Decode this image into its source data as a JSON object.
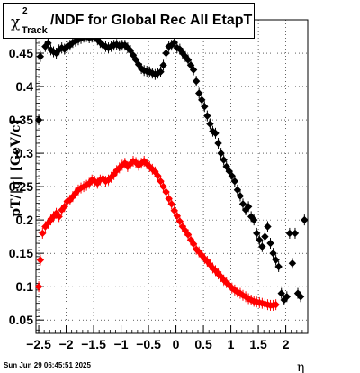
{
  "chart_data": {
    "type": "scatter",
    "title": {
      "symbol": "χ",
      "superscript": "2",
      "subscript": "Track",
      "text": "/NDF for Global Rec All EtapT"
    },
    "xlabel": "η",
    "ylabel": "pT/|q| [GeV/c]",
    "xlim": [
      -2.55,
      2.4
    ],
    "ylim": [
      0.03,
      0.5
    ],
    "x_ticks": [
      "−2.5",
      "−2",
      "−1.5",
      "−1",
      "−0.5",
      "0",
      "0.5",
      "1",
      "1.5",
      "2"
    ],
    "y_ticks": [
      "0.05",
      "0.1",
      "0.15",
      "0.2",
      "0.25",
      "0.3",
      "0.35",
      "0.4",
      "0.45"
    ],
    "grid": true,
    "series": [
      {
        "color": "#000000",
        "marker": "diamond",
        "x": [
          -2.5,
          -2.47,
          -2.43,
          -2.38,
          -2.33,
          -2.28,
          -2.23,
          -2.18,
          -2.13,
          -2.08,
          -2.03,
          -1.98,
          -1.93,
          -1.88,
          -1.83,
          -1.78,
          -1.73,
          -1.68,
          -1.63,
          -1.58,
          -1.53,
          -1.48,
          -1.43,
          -1.38,
          -1.33,
          -1.28,
          -1.23,
          -1.18,
          -1.13,
          -1.08,
          -1.03,
          -0.98,
          -0.93,
          -0.88,
          -0.83,
          -0.78,
          -0.73,
          -0.68,
          -0.63,
          -0.58,
          -0.53,
          -0.48,
          -0.43,
          -0.38,
          -0.33,
          -0.28,
          -0.23,
          -0.18,
          -0.13,
          -0.08,
          -0.03,
          0.02,
          0.07,
          0.12,
          0.17,
          0.22,
          0.27,
          0.32,
          0.37,
          0.42,
          0.47,
          0.52,
          0.57,
          0.62,
          0.67,
          0.72,
          0.77,
          0.82,
          0.87,
          0.92,
          0.97,
          1.02,
          1.07,
          1.12,
          1.17,
          1.22,
          1.27,
          1.32,
          1.37,
          1.42,
          1.47,
          1.52,
          1.57,
          1.62,
          1.67,
          1.72,
          1.77,
          1.82,
          1.87,
          1.92,
          1.97,
          2.02,
          2.07,
          2.12,
          2.17,
          2.22,
          2.27,
          2.34
        ],
        "y": [
          0.35,
          0.445,
          0.48,
          0.46,
          0.465,
          0.455,
          0.452,
          0.45,
          0.455,
          0.458,
          0.456,
          0.46,
          0.462,
          0.466,
          0.468,
          0.47,
          0.472,
          0.474,
          0.475,
          0.473,
          0.474,
          0.475,
          0.47,
          0.466,
          0.462,
          0.46,
          0.458,
          0.46,
          0.462,
          0.463,
          0.461,
          0.462,
          0.462,
          0.458,
          0.454,
          0.447,
          0.44,
          0.433,
          0.427,
          0.424,
          0.423,
          0.422,
          0.42,
          0.418,
          0.42,
          0.422,
          0.432,
          0.45,
          0.46,
          0.462,
          0.466,
          0.458,
          0.456,
          0.45,
          0.445,
          0.44,
          0.432,
          0.425,
          0.408,
          0.39,
          0.38,
          0.37,
          0.356,
          0.344,
          0.333,
          0.33,
          0.315,
          0.3,
          0.29,
          0.28,
          0.273,
          0.266,
          0.258,
          0.245,
          0.236,
          0.224,
          0.215,
          0.22,
          0.205,
          0.2,
          0.18,
          0.17,
          0.16,
          0.175,
          0.19,
          0.165,
          0.15,
          0.14,
          0.13,
          0.09,
          0.08,
          0.085,
          0.18,
          0.135,
          0.18,
          0.09,
          0.085,
          0.2
        ]
      },
      {
        "color": "#ff0000",
        "marker": "diamond",
        "x": [
          -2.5,
          -2.47,
          -2.43,
          -2.38,
          -2.33,
          -2.28,
          -2.23,
          -2.18,
          -2.13,
          -2.08,
          -2.03,
          -1.98,
          -1.93,
          -1.88,
          -1.83,
          -1.78,
          -1.73,
          -1.68,
          -1.63,
          -1.58,
          -1.53,
          -1.48,
          -1.43,
          -1.38,
          -1.33,
          -1.28,
          -1.23,
          -1.18,
          -1.13,
          -1.08,
          -1.03,
          -0.98,
          -0.93,
          -0.88,
          -0.83,
          -0.78,
          -0.73,
          -0.68,
          -0.63,
          -0.58,
          -0.53,
          -0.48,
          -0.43,
          -0.38,
          -0.33,
          -0.28,
          -0.23,
          -0.18,
          -0.13,
          -0.08,
          -0.03,
          0.02,
          0.07,
          0.12,
          0.17,
          0.22,
          0.27,
          0.32,
          0.37,
          0.42,
          0.47,
          0.52,
          0.57,
          0.62,
          0.67,
          0.72,
          0.77,
          0.82,
          0.87,
          0.92,
          0.97,
          1.02,
          1.07,
          1.12,
          1.17,
          1.22,
          1.27,
          1.32,
          1.37,
          1.42,
          1.47,
          1.52,
          1.57,
          1.62,
          1.67,
          1.72,
          1.77,
          1.82
        ],
        "y": [
          0.1,
          0.14,
          0.18,
          0.19,
          0.195,
          0.2,
          0.205,
          0.21,
          0.205,
          0.215,
          0.22,
          0.228,
          0.23,
          0.235,
          0.24,
          0.245,
          0.248,
          0.25,
          0.252,
          0.255,
          0.26,
          0.258,
          0.255,
          0.26,
          0.262,
          0.258,
          0.26,
          0.264,
          0.268,
          0.274,
          0.278,
          0.282,
          0.285,
          0.28,
          0.284,
          0.288,
          0.286,
          0.282,
          0.285,
          0.288,
          0.284,
          0.28,
          0.276,
          0.272,
          0.266,
          0.258,
          0.25,
          0.242,
          0.232,
          0.224,
          0.214,
          0.206,
          0.198,
          0.19,
          0.184,
          0.178,
          0.17,
          0.164,
          0.156,
          0.152,
          0.147,
          0.142,
          0.138,
          0.133,
          0.128,
          0.124,
          0.119,
          0.115,
          0.11,
          0.106,
          0.102,
          0.098,
          0.095,
          0.092,
          0.09,
          0.087,
          0.085,
          0.082,
          0.08,
          0.078,
          0.077,
          0.076,
          0.075,
          0.074,
          0.073,
          0.072,
          0.072,
          0.073
        ]
      }
    ]
  },
  "footer": "Sun Jun 29 06:45:51 2025"
}
